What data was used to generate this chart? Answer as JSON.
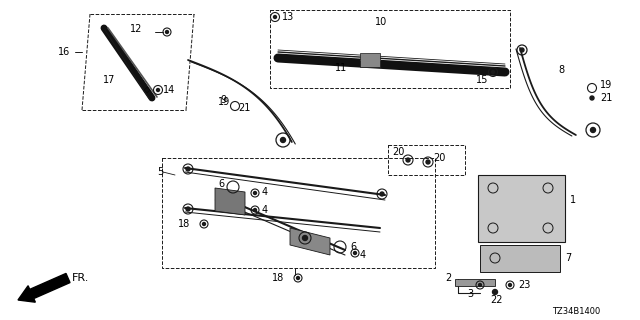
{
  "part_code": "TZ34B1400",
  "bg_color": "#ffffff",
  "figsize": [
    6.4,
    3.2
  ],
  "dpi": 100,
  "font_size": 7,
  "line_color": "#1a1a1a"
}
